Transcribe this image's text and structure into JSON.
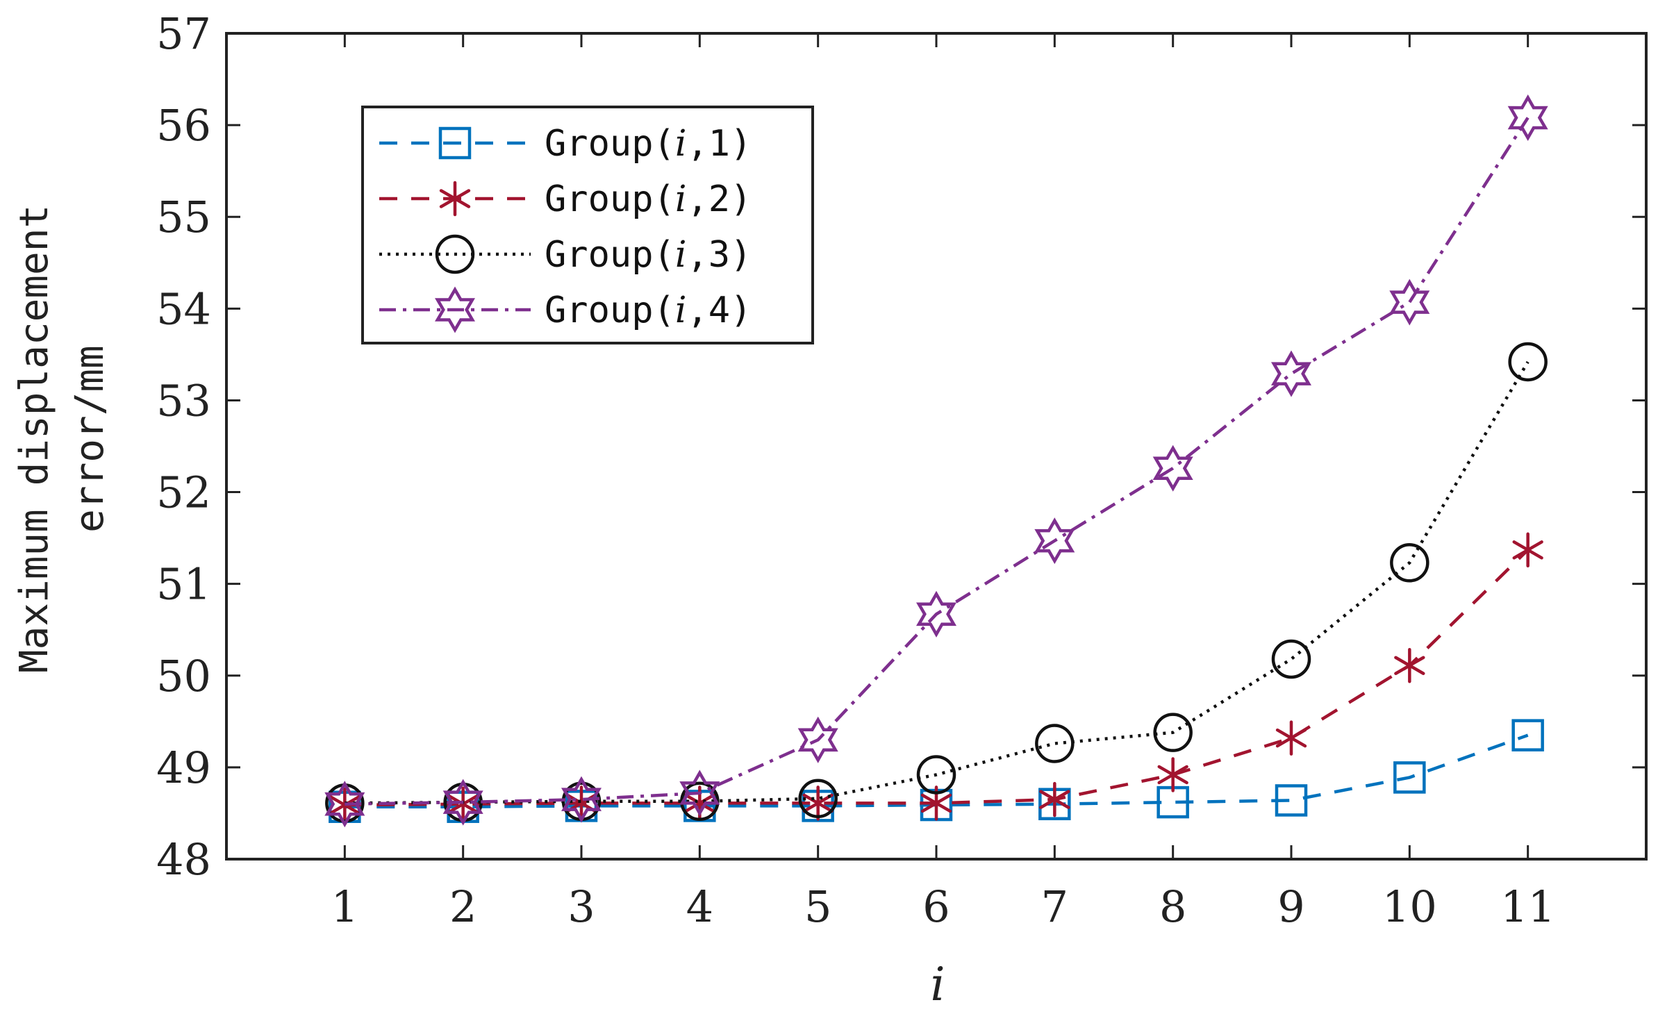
{
  "chart_data": {
    "type": "line",
    "title": "",
    "xlabel": "i",
    "ylabel_lines": [
      "Maximum displacement",
      "error/mm"
    ],
    "x": [
      1,
      2,
      3,
      4,
      5,
      6,
      7,
      8,
      9,
      10,
      11
    ],
    "xlim": [
      0,
      12
    ],
    "ylim": [
      48,
      57
    ],
    "yticks": [
      48,
      49,
      50,
      51,
      52,
      53,
      54,
      55,
      56,
      57
    ],
    "xticks": [
      1,
      2,
      3,
      4,
      5,
      6,
      7,
      8,
      9,
      10,
      11
    ],
    "grid": false,
    "legend_position": "top-left",
    "series": [
      {
        "name": "Group(i,1)",
        "legend_prefix": "Group(",
        "legend_var": "i",
        "legend_suffix": ",1)",
        "color": "#0072BD",
        "dash": "dashed",
        "marker": "square",
        "values": [
          48.57,
          48.57,
          48.58,
          48.58,
          48.58,
          48.59,
          48.6,
          48.62,
          48.64,
          48.89,
          49.35
        ]
      },
      {
        "name": "Group(i,2)",
        "legend_prefix": "Group(",
        "legend_var": "i",
        "legend_suffix": ",2)",
        "color": "#A2142F",
        "dash": "dashed",
        "marker": "asterisk",
        "values": [
          48.59,
          48.6,
          48.61,
          48.61,
          48.61,
          48.61,
          48.65,
          48.92,
          49.32,
          50.11,
          51.37
        ]
      },
      {
        "name": "Group(i,3)",
        "legend_prefix": "Group(",
        "legend_var": "i",
        "legend_suffix": ",3)",
        "color": "#111111",
        "dash": "dotted",
        "marker": "circle",
        "values": [
          48.61,
          48.62,
          48.63,
          48.63,
          48.66,
          48.92,
          49.26,
          49.38,
          50.18,
          51.23,
          53.42
        ]
      },
      {
        "name": "Group(i,4)",
        "legend_prefix": "Group(",
        "legend_var": "i",
        "legend_suffix": ",4)",
        "color": "#7E2F8E",
        "dash": "dashdot",
        "marker": "hexagram",
        "values": [
          48.6,
          48.62,
          48.65,
          48.72,
          49.3,
          50.67,
          51.47,
          52.26,
          53.29,
          54.07,
          56.08
        ]
      }
    ]
  }
}
